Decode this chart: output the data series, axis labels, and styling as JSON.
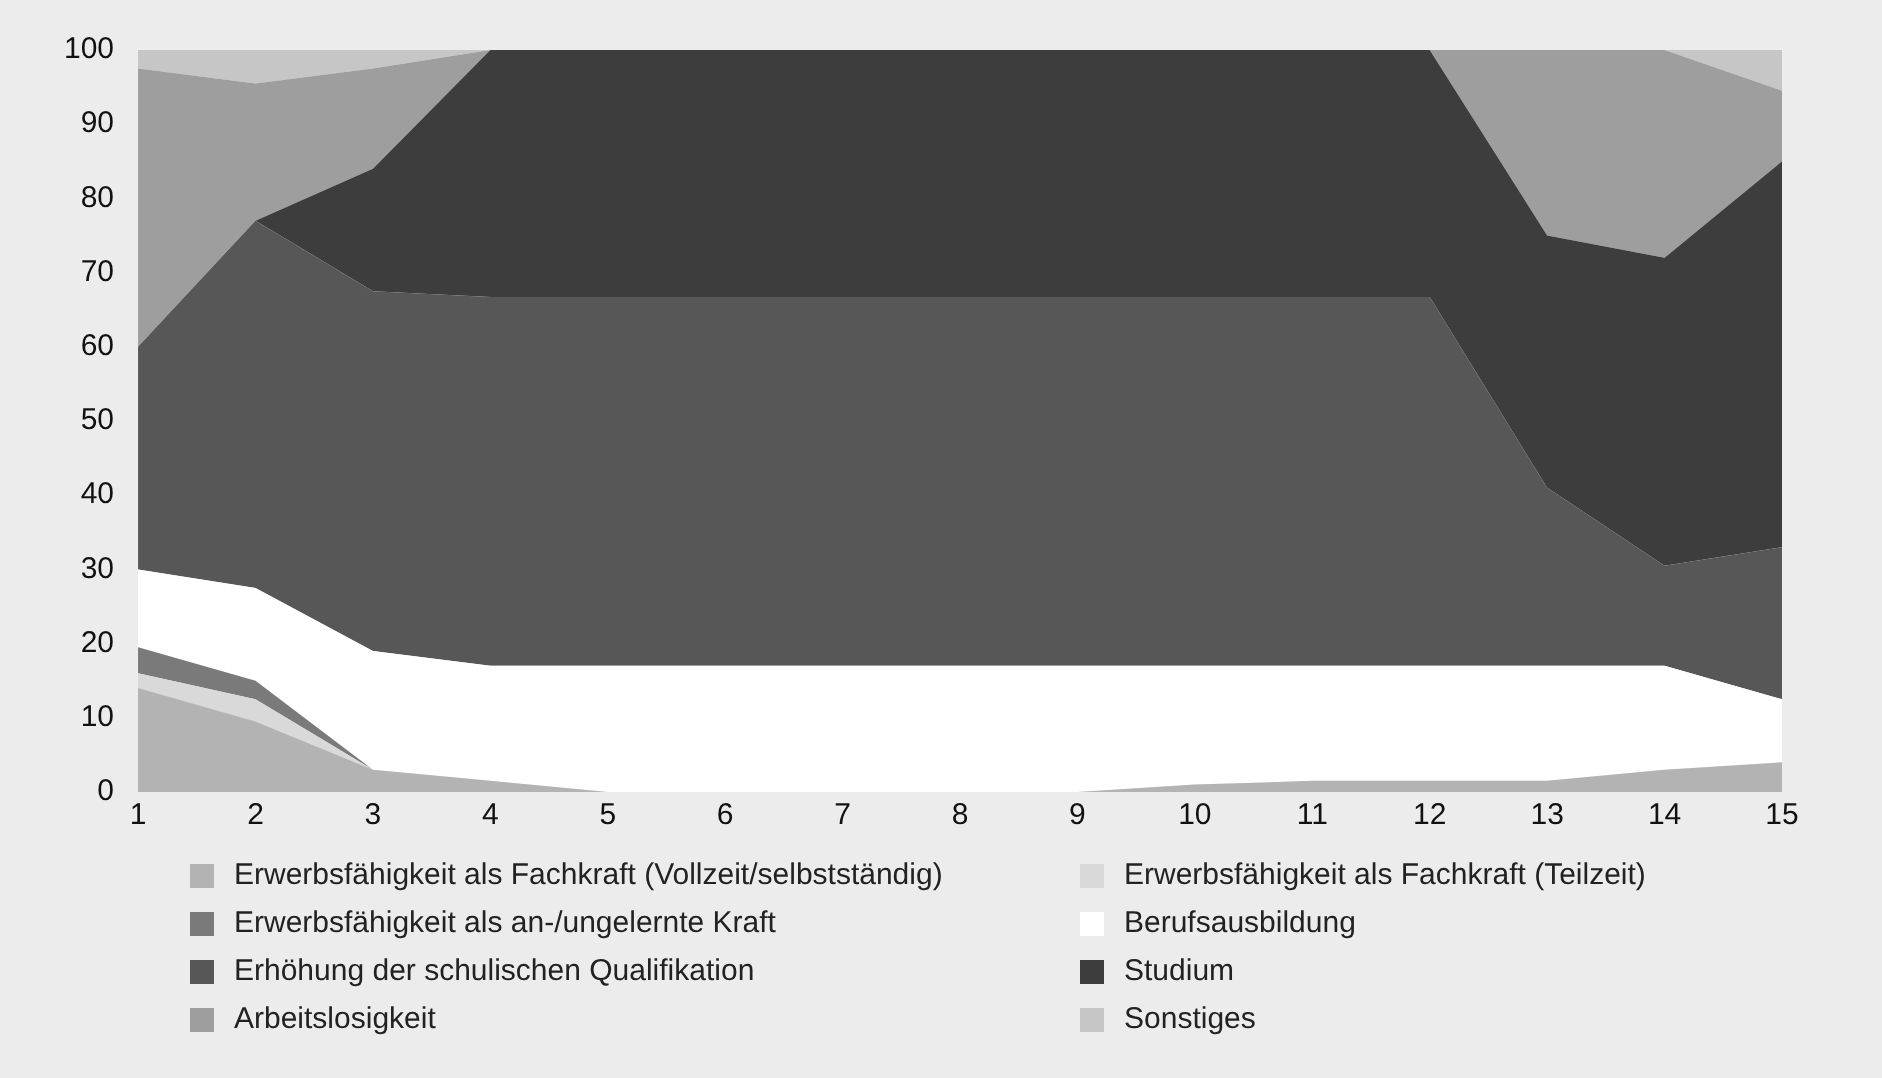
{
  "chart_data": {
    "type": "area",
    "stacked": true,
    "x": [
      1,
      2,
      3,
      4,
      5,
      6,
      7,
      8,
      9,
      10,
      11,
      12,
      13,
      14,
      15
    ],
    "xlim": [
      1,
      15
    ],
    "xticks": [
      1,
      2,
      3,
      4,
      5,
      6,
      7,
      8,
      9,
      10,
      11,
      12,
      13,
      14,
      15
    ],
    "ylim": [
      0,
      100
    ],
    "yticks": [
      0,
      10,
      20,
      30,
      40,
      50,
      60,
      70,
      80,
      90,
      100
    ],
    "grid": false,
    "legend": "bottom",
    "series": [
      {
        "name": "Erwerbsfähigkeit als Fachkraft (Vollzeit/selbstständig)",
        "color": "#b3b3b3",
        "values": [
          14,
          9.5,
          3,
          1.5,
          0,
          0,
          0,
          0,
          0,
          1,
          1.5,
          1.5,
          1.5,
          3,
          4
        ]
      },
      {
        "name": "Erwerbsfähigkeit als Fachkraft (Teilzeit)",
        "color": "#d9d9d9",
        "values": [
          2,
          3,
          0,
          0,
          0,
          0,
          0,
          0,
          0,
          0,
          0,
          0,
          0,
          0,
          0
        ]
      },
      {
        "name": "Erwerbsfähigkeit als an-/ungelernte Kraft",
        "color": "#7a7a7a",
        "values": [
          3.5,
          2.5,
          0,
          0,
          0,
          0,
          0,
          0,
          0,
          0,
          0,
          0,
          0,
          0,
          0
        ]
      },
      {
        "name": "Berufsausbildung",
        "color": "#ffffff",
        "values": [
          10.5,
          12.5,
          16,
          15.5,
          17,
          17,
          17,
          17,
          17,
          16,
          15.5,
          15.5,
          15.5,
          14,
          8.5
        ]
      },
      {
        "name": "Erhöhung der schulischen Qualifikation",
        "color": "#575757",
        "values": [
          30,
          49.5,
          48.5,
          49.7,
          49.7,
          49.7,
          49.7,
          49.7,
          49.7,
          49.7,
          49.7,
          49.7,
          24,
          13.5,
          20.5
        ]
      },
      {
        "name": "Studium",
        "color": "#3d3d3d",
        "values": [
          0,
          0,
          16.5,
          33.3,
          33.3,
          33.3,
          33.3,
          33.3,
          33.3,
          33.3,
          33.3,
          33.3,
          34,
          41.5,
          52
        ]
      },
      {
        "name": "Arbeitslosigkeit",
        "color": "#9e9e9e",
        "values": [
          37.5,
          18.5,
          13.5,
          0,
          0,
          0,
          0,
          0,
          0,
          0,
          0,
          0,
          25,
          28,
          9.5
        ]
      },
      {
        "name": "Sonstiges",
        "color": "#c6c6c6",
        "values": [
          2.5,
          4.5,
          2.5,
          0,
          0,
          0,
          0,
          0,
          0,
          0,
          0,
          0,
          0,
          0,
          5.5
        ]
      }
    ]
  }
}
